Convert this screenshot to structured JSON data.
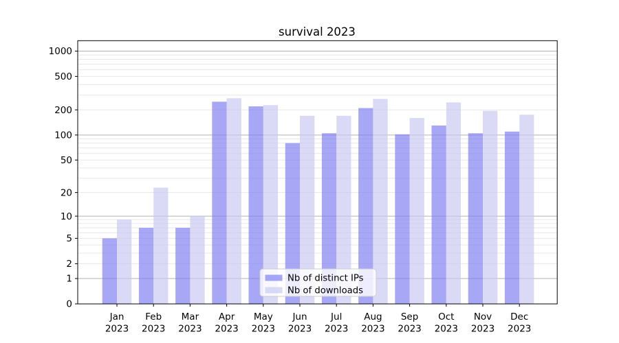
{
  "chart_data": {
    "type": "bar",
    "title": "survival 2023",
    "categories": [
      "Jan",
      "Feb",
      "Mar",
      "Apr",
      "May",
      "Jun",
      "Jul",
      "Aug",
      "Sep",
      "Oct",
      "Nov",
      "Dec"
    ],
    "category_year_line": "2023",
    "series": [
      {
        "name": "Nb of distinct IPs",
        "color": "#7a7af0",
        "alpha": 0.66,
        "rendered_color": "#a9a9f2",
        "values": [
          5,
          7,
          7,
          250,
          220,
          80,
          105,
          210,
          102,
          130,
          105,
          110
        ]
      },
      {
        "name": "Nb of downloads",
        "color": "#c7c7f3",
        "alpha": 0.66,
        "rendered_color": "#dadaf5",
        "values": [
          9,
          23,
          10,
          275,
          228,
          170,
          170,
          270,
          160,
          245,
          195,
          175
        ]
      }
    ],
    "yscale": "log1p",
    "ylim": [
      0,
      1330
    ],
    "ytick_values": [
      0,
      1,
      2,
      5,
      10,
      20,
      50,
      100,
      200,
      500,
      1000
    ],
    "ytick_labels": [
      "0",
      "1",
      "2",
      "5",
      "10",
      "20",
      "50",
      "100",
      "200",
      "500",
      "1000"
    ],
    "major_grid_values": [
      1,
      10,
      100,
      1000
    ],
    "grid": true,
    "legend": {
      "position": "lower center"
    },
    "colors": {
      "grid_major": "#b2b2b2",
      "grid_minor": "#e7e7e7",
      "axis": "#000000",
      "legend_bg": "rgba(255,255,255,0.8)",
      "legend_border": "#cccccc"
    }
  }
}
